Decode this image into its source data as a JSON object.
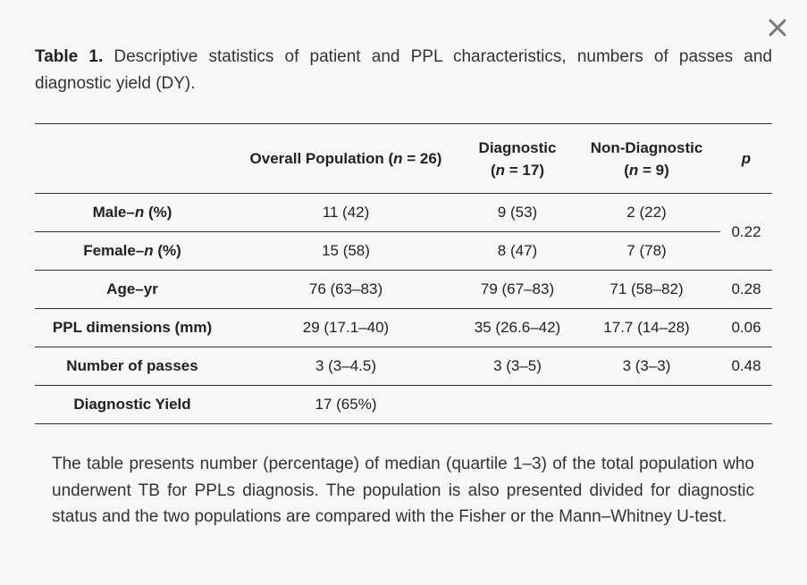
{
  "caption": {
    "label": "Table 1.",
    "text": " Descriptive statistics of patient and PPL characteristics, numbers of passes and diagnostic yield (DY)."
  },
  "icons": {
    "close": "close-x-icon"
  },
  "table": {
    "header": {
      "col0": "",
      "overall_prefix": "Overall Population (",
      "overall_n": "n",
      "overall_suffix": " = 26)",
      "diag_name": "Diagnostic",
      "diag_prefix": "(",
      "diag_n": "n",
      "diag_suffix": " = 17)",
      "nondiag_name": "Non-Diagnostic",
      "nondiag_prefix": "(",
      "nondiag_n": "n",
      "nondiag_suffix": " = 9)",
      "p": "p"
    },
    "rows": [
      {
        "label_prefix": "Male–",
        "label_italic": "n",
        "label_suffix": " (%)",
        "overall": "11 (42)",
        "diagnostic": "9 (53)",
        "non_diagnostic": "2 (22)",
        "p": "0.22"
      },
      {
        "label_prefix": "Female–",
        "label_italic": "n",
        "label_suffix": " (%)",
        "overall": "15 (58)",
        "diagnostic": "8 (47)",
        "non_diagnostic": "7 (78)"
      },
      {
        "label": "Age–yr",
        "overall": "76 (63–83)",
        "diagnostic": "79 (67–83)",
        "non_diagnostic": "71 (58–82)",
        "p": "0.28"
      },
      {
        "label": "PPL dimensions (mm)",
        "overall": "29 (17.1–40)",
        "diagnostic": "35 (26.6–42)",
        "non_diagnostic": "17.7 (14–28)",
        "p": "0.06"
      },
      {
        "label": "Number of passes",
        "overall": "3 (3–4.5)",
        "diagnostic": "3 (3–5)",
        "non_diagnostic": "3 (3–3)",
        "p": "0.48"
      },
      {
        "label": "Diagnostic Yield",
        "overall": "17 (65%)",
        "diagnostic": "",
        "non_diagnostic": "",
        "p": ""
      }
    ]
  },
  "footnote": "The table presents number (percentage) of median (quartile 1–3) of the total population who underwent TB for PPLs diagnosis. The population is also presented divided for diagnostic status and the two populations are compared with the Fisher or the Mann–Whitney U-test."
}
